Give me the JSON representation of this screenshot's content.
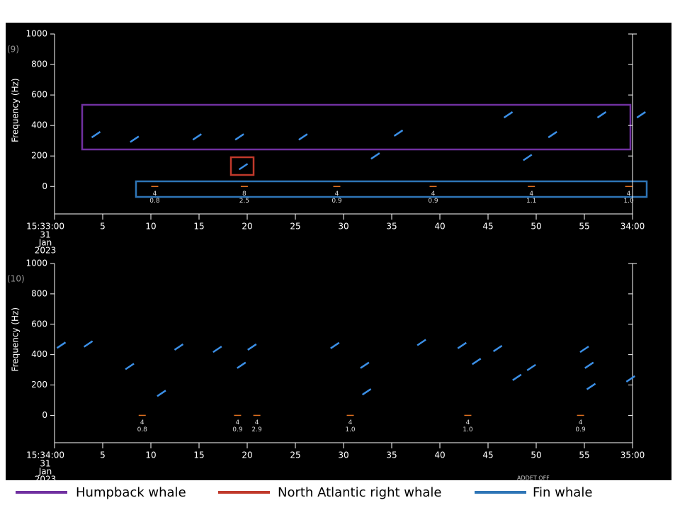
{
  "chart_data": [
    {
      "type": "spectrogram",
      "panel_label": "(9)",
      "y_label": "Frequency (Hz)",
      "date": [
        "31",
        "Jan",
        "2023"
      ],
      "ylim": [
        -180,
        1000
      ],
      "yticks": [
        0,
        200,
        400,
        600,
        800,
        1000
      ],
      "xlim": [
        0,
        60
      ],
      "xticks": [
        {
          "value": 0,
          "label": "15:33:00"
        },
        5,
        10,
        15,
        20,
        25,
        30,
        35,
        40,
        45,
        50,
        55,
        {
          "value": 60,
          "label": "34:00"
        }
      ],
      "call_color": "#3b8fe6",
      "calls": {
        "x": [
          4.3,
          8.3,
          14.8,
          19.2,
          19.6,
          25.8,
          33.3,
          35.7,
          47.1,
          49.1,
          51.7,
          56.8,
          60.9
        ],
        "y": [
          340,
          310,
          325,
          325,
          130,
          325,
          200,
          350,
          470,
          190,
          340,
          470,
          470
        ]
      },
      "detection_labels": [
        {
          "x": 10.4,
          "texts": [
            "4",
            "0.8"
          ]
        },
        {
          "x": 19.7,
          "texts": [
            "8",
            "2.5"
          ]
        },
        {
          "x": 29.3,
          "texts": [
            "4",
            "0.9"
          ]
        },
        {
          "x": 39.3,
          "texts": [
            "4",
            "0.9"
          ]
        },
        {
          "x": 49.5,
          "texts": [
            "4",
            "1.1"
          ]
        },
        {
          "x": 59.6,
          "texts": [
            "4",
            "1.0"
          ]
        }
      ]
    },
    {
      "type": "spectrogram",
      "panel_label": "(10)",
      "y_label": "Frequency (Hz)",
      "date": [
        "31",
        "Jan",
        "2023"
      ],
      "ylim": [
        -180,
        1000
      ],
      "yticks": [
        0,
        200,
        400,
        600,
        800,
        1000
      ],
      "xlim": [
        0,
        60
      ],
      "xticks": [
        {
          "value": 0,
          "label": "15:34:00"
        },
        5,
        10,
        15,
        20,
        25,
        30,
        35,
        40,
        45,
        50,
        55,
        {
          "value": 60,
          "label": "35:00"
        }
      ],
      "call_color": "#3b8fe6",
      "calls": {
        "x": [
          0.7,
          3.5,
          7.8,
          11.1,
          12.9,
          16.9,
          19.4,
          20.5,
          29.1,
          32.2,
          32.4,
          38.1,
          42.3,
          43.8,
          46,
          48,
          49.5,
          55,
          55.5,
          55.7,
          59.8
        ],
        "y": [
          462,
          470,
          322,
          145,
          450,
          435,
          330,
          450,
          460,
          330,
          155,
          480,
          460,
          355,
          440,
          250,
          315,
          435,
          330,
          190,
          240
        ]
      },
      "detection_labels": [
        {
          "x": 9.1,
          "texts": [
            "4",
            "0.8"
          ]
        },
        {
          "x": 19,
          "texts": [
            "4",
            "0.9"
          ]
        },
        {
          "x": 21,
          "texts": [
            "4",
            "2.9"
          ]
        },
        {
          "x": 30.7,
          "texts": [
            "4",
            "1.0"
          ]
        },
        {
          "x": 42.9,
          "texts": [
            "4",
            "1.0"
          ]
        },
        {
          "x": 54.6,
          "texts": [
            "4",
            "0.9"
          ]
        }
      ]
    }
  ],
  "footer_note": "ADDET OFF",
  "legend": [
    {
      "name": "Humpback whale",
      "color": "#7030a0"
    },
    {
      "name": "North Atlantic right whale",
      "color": "#c0392b"
    },
    {
      "name": "Fin whale",
      "color": "#2e75b6"
    }
  ]
}
